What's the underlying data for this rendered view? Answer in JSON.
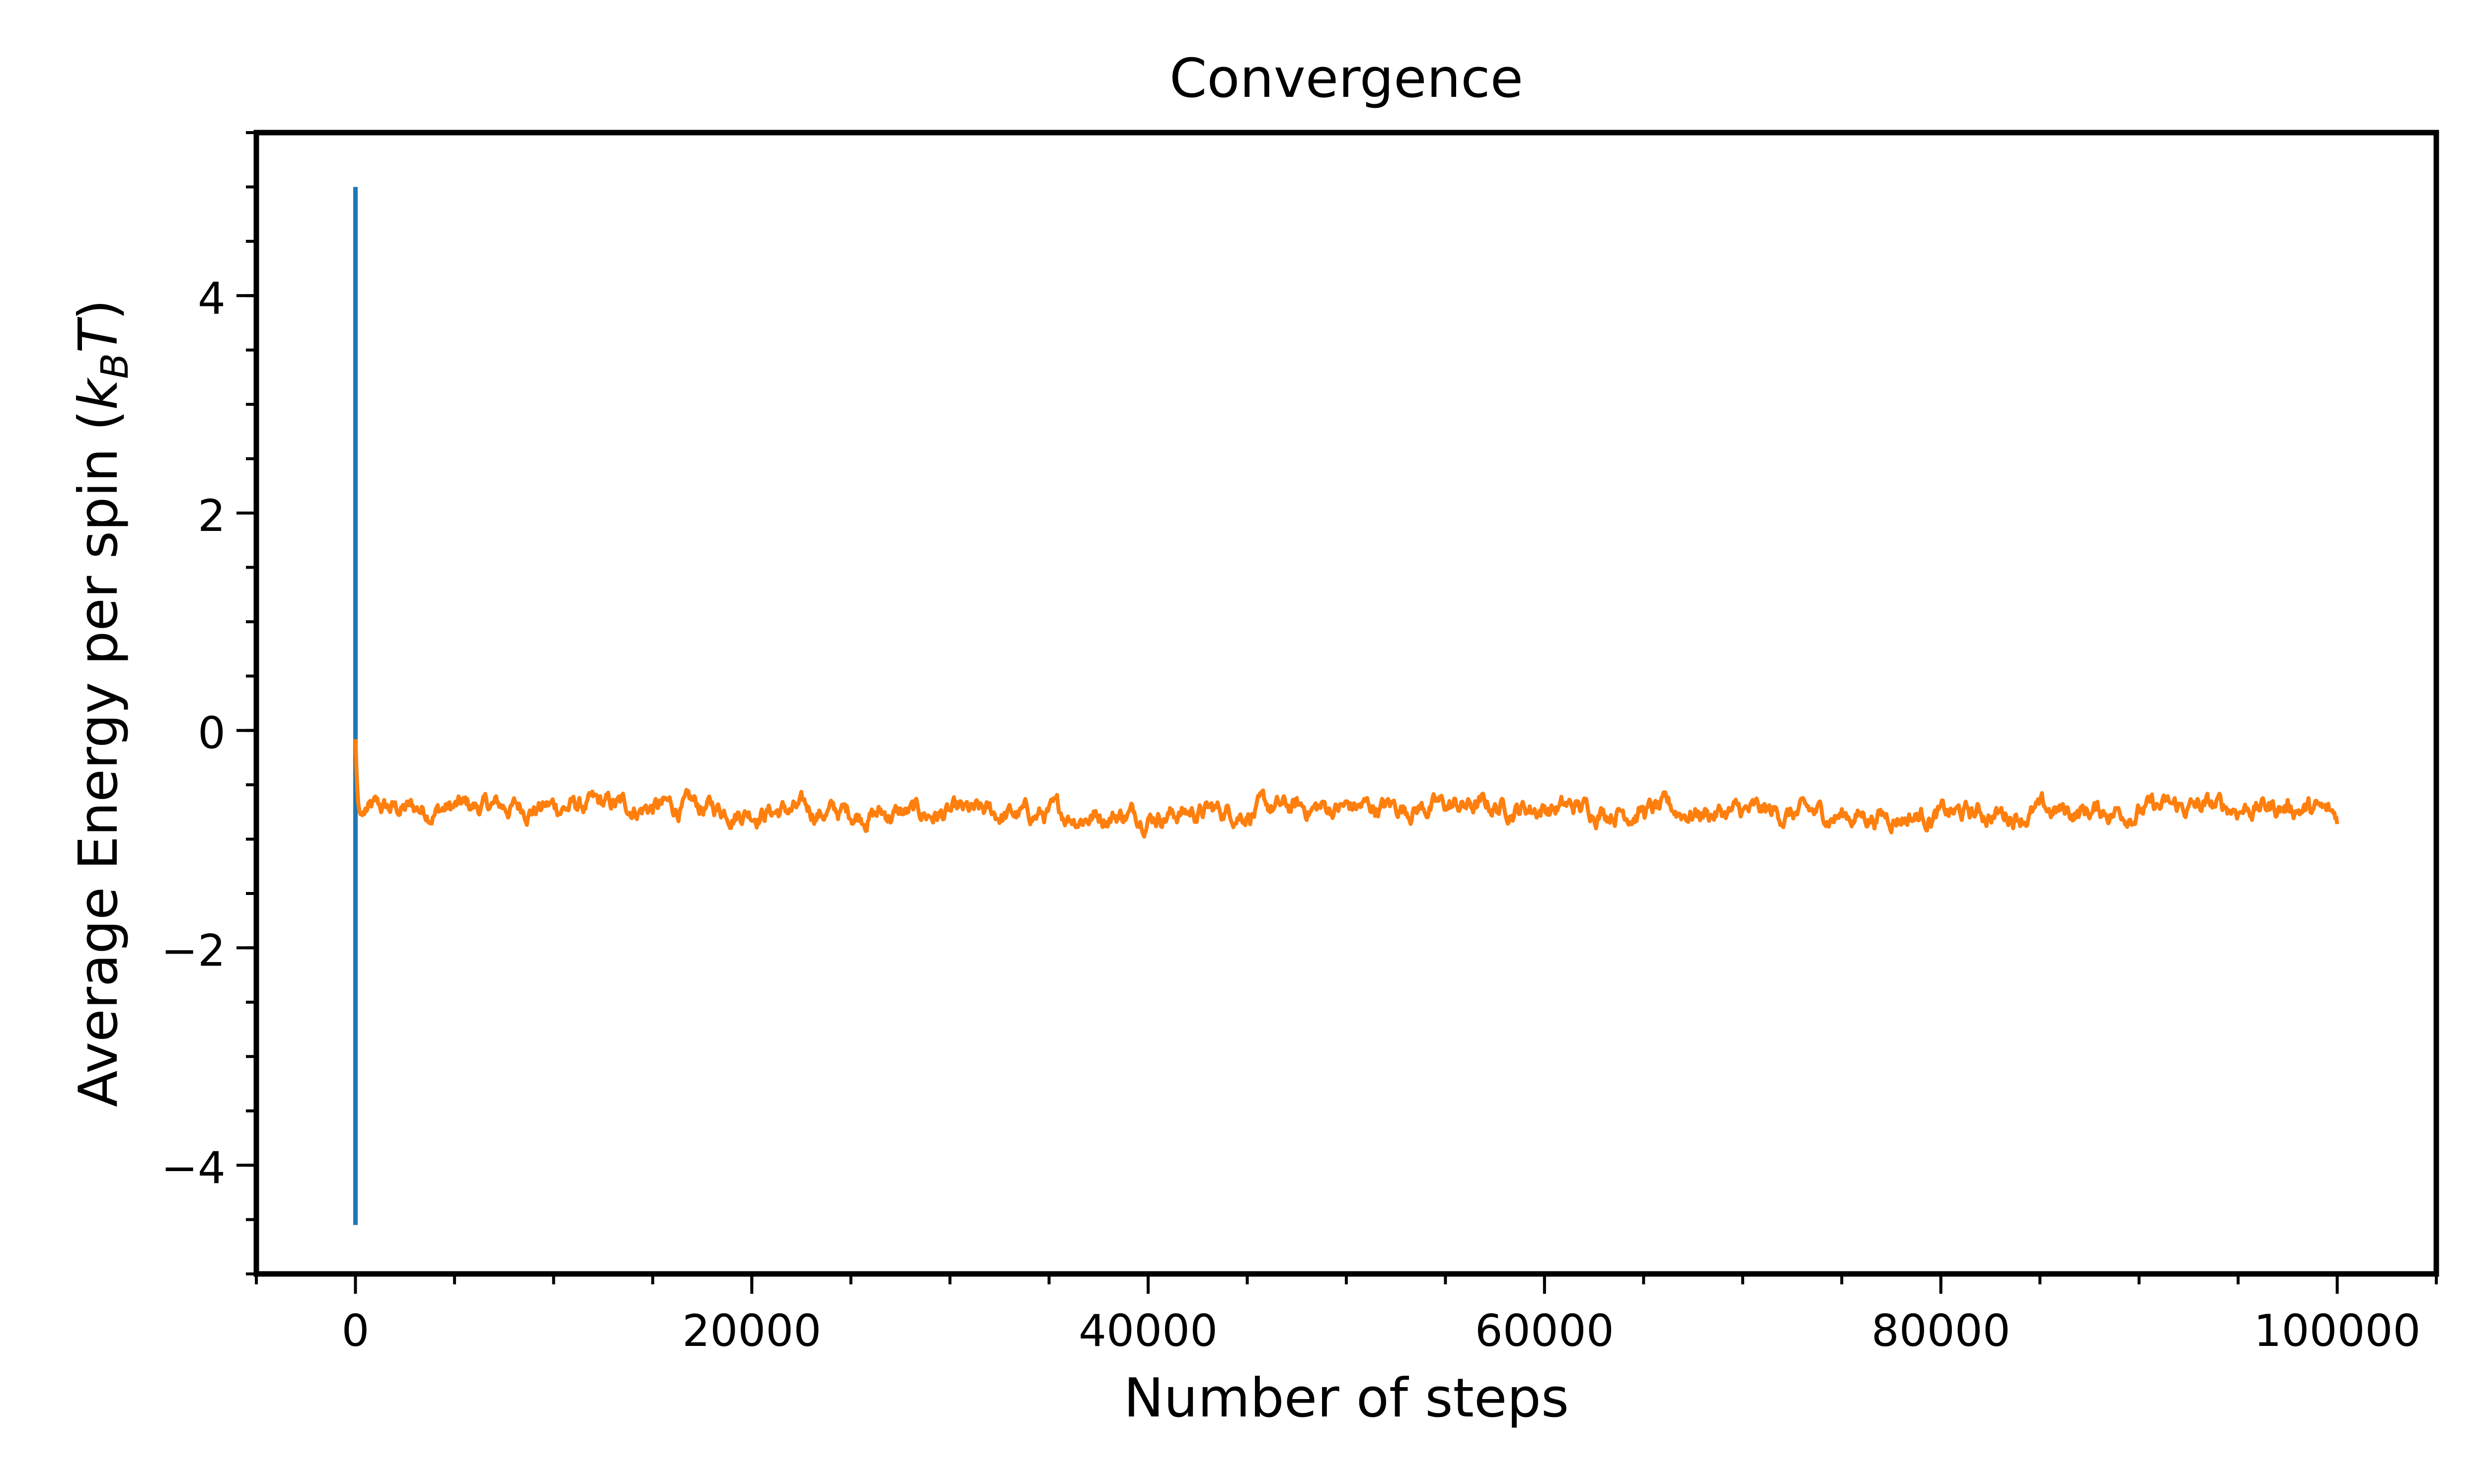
{
  "chart_data": {
    "type": "line",
    "title": "Convergence",
    "xlabel": "Number of steps",
    "ylabel_main": "Average Energy per spin (",
    "ylabel_k": "k",
    "ylabel_sub": "B",
    "ylabel_t": "T",
    "ylabel_close": ")",
    "xlim": [
      -5000,
      105000
    ],
    "ylim": [
      -5.0,
      5.5
    ],
    "x_ticks": [
      0,
      20000,
      40000,
      60000,
      80000,
      100000
    ],
    "x_tick_labels": [
      "0",
      "20000",
      "40000",
      "60000",
      "80000",
      "100000"
    ],
    "x_minor_step": 5000,
    "y_ticks": [
      -4,
      -2,
      0,
      2,
      4
    ],
    "y_tick_labels": [
      "−4",
      "−2",
      "0",
      "2",
      "4"
    ],
    "y_minor_step": 0.5,
    "grid": false,
    "legend": "none",
    "series": [
      {
        "color": "#1f77b4",
        "x": [
          0,
          0,
          0,
          0
        ],
        "y": [
          5.0,
          -4.55,
          0.0,
          -0.1
        ]
      },
      {
        "color": "#ff7f0e",
        "x_start": 0,
        "x_end": 100000,
        "count": 2001,
        "y": [
          -0.08,
          -0.35,
          -0.55,
          -0.68,
          -0.74,
          -0.77,
          -0.76,
          -0.78,
          -0.75,
          -0.77
        ],
        "mean_level": -0.74,
        "noise_amplitude": 0.12,
        "final_value": -0.85
      }
    ]
  }
}
